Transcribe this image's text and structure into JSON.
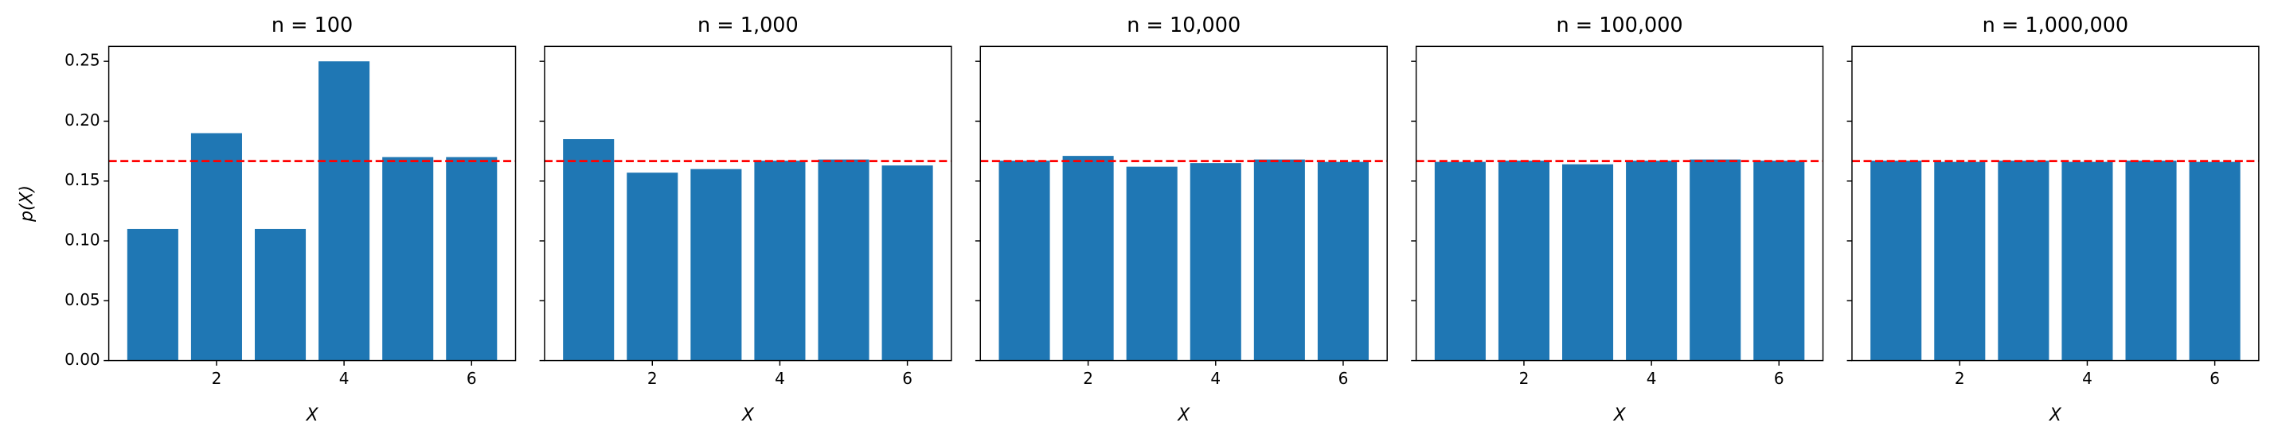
{
  "chart_data": [
    {
      "type": "bar",
      "title": "n = 100",
      "xlabel": "X",
      "ylabel": "p(X)",
      "color": "#1f77b4",
      "x": [
        1,
        2,
        3,
        4,
        5,
        6
      ],
      "values": [
        0.11,
        0.19,
        0.11,
        0.25,
        0.17,
        0.17
      ],
      "xlim": [
        0.31,
        6.69
      ],
      "xticks": [
        2,
        4,
        6
      ],
      "ylim": [
        0,
        0.2625
      ],
      "yticks": [
        {
          "value": 0,
          "label": "0.00"
        },
        {
          "value": 0.05,
          "label": "0.05"
        },
        {
          "value": 0.1,
          "label": "0.10"
        },
        {
          "value": 0.15,
          "label": "0.15"
        },
        {
          "value": 0.2,
          "label": "0.20"
        },
        {
          "value": 0.25,
          "label": "0.25"
        }
      ],
      "hline": 0.1667,
      "hline_color": "#ff0000"
    },
    {
      "type": "bar",
      "title": "n = 1,000",
      "xlabel": "X",
      "color": "#1f77b4",
      "x": [
        1,
        2,
        3,
        4,
        5,
        6
      ],
      "values": [
        0.185,
        0.157,
        0.16,
        0.167,
        0.168,
        0.163
      ],
      "xlim": [
        0.31,
        6.69
      ],
      "xticks": [
        2,
        4,
        6
      ],
      "ylim": [
        0,
        0.2625
      ],
      "hline": 0.1667,
      "hline_color": "#ff0000"
    },
    {
      "type": "bar",
      "title": "n = 10,000",
      "xlabel": "X",
      "color": "#1f77b4",
      "x": [
        1,
        2,
        3,
        4,
        5,
        6
      ],
      "values": [
        0.167,
        0.171,
        0.162,
        0.165,
        0.168,
        0.166
      ],
      "xlim": [
        0.31,
        6.69
      ],
      "xticks": [
        2,
        4,
        6
      ],
      "ylim": [
        0,
        0.2625
      ],
      "hline": 0.1667,
      "hline_color": "#ff0000"
    },
    {
      "type": "bar",
      "title": "n = 100,000",
      "xlabel": "X",
      "color": "#1f77b4",
      "x": [
        1,
        2,
        3,
        4,
        5,
        6
      ],
      "values": [
        0.166,
        0.167,
        0.164,
        0.167,
        0.168,
        0.167
      ],
      "xlim": [
        0.31,
        6.69
      ],
      "xticks": [
        2,
        4,
        6
      ],
      "ylim": [
        0,
        0.2625
      ],
      "hline": 0.1667,
      "hline_color": "#ff0000"
    },
    {
      "type": "bar",
      "title": "n = 1,000,000",
      "xlabel": "X",
      "color": "#1f77b4",
      "x": [
        1,
        2,
        3,
        4,
        5,
        6
      ],
      "values": [
        0.167,
        0.166,
        0.167,
        0.166,
        0.167,
        0.166
      ],
      "xlim": [
        0.31,
        6.69
      ],
      "xticks": [
        2,
        4,
        6
      ],
      "ylim": [
        0,
        0.2625
      ],
      "hline": 0.1667,
      "hline_color": "#ff0000"
    }
  ]
}
